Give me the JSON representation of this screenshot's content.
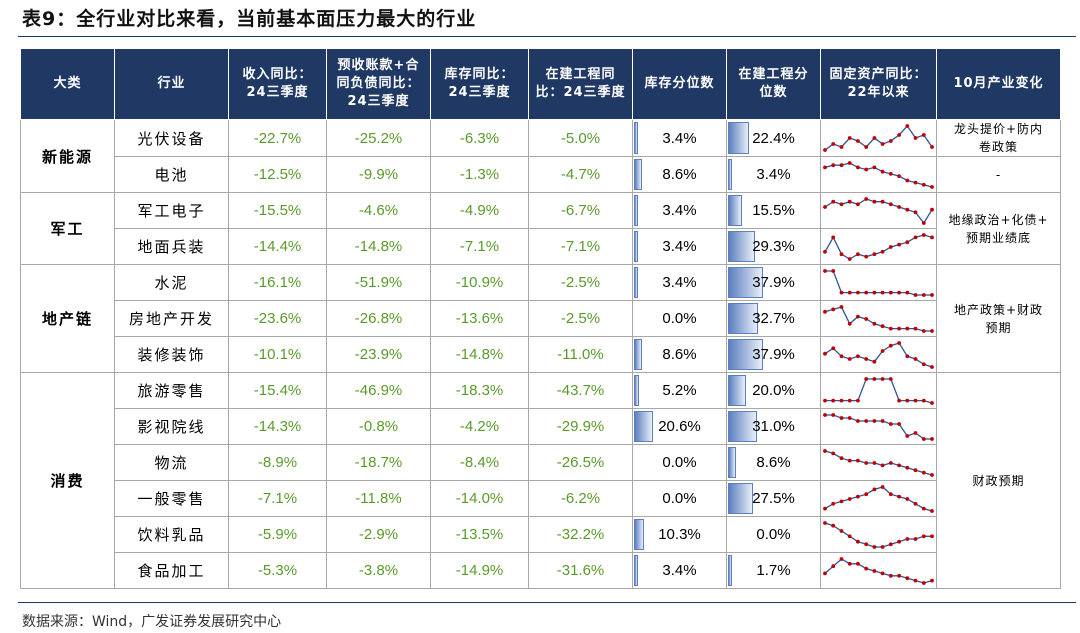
{
  "title": "表9：全行业对比来看，当前基本面压力最大的行业",
  "headers": [
    "大类",
    "行业",
    "收入同比：24三季度",
    "预收账款+合同负债同比：24三季度",
    "库存同比：24三季度",
    "在建工程同比：24三季度",
    "库存分位数",
    "在建工程分位数",
    "固定资产同比：22年以来",
    "10月产业变化"
  ],
  "header_lines": [
    [
      "大类"
    ],
    [
      "行业"
    ],
    [
      "收入同比：",
      "24三季度"
    ],
    [
      "预收账款+合",
      "同负债同比：",
      "24三季度"
    ],
    [
      "库存同比：",
      "24三季度"
    ],
    [
      "在建工程同",
      "比：24三季度"
    ],
    [
      "库存分位数"
    ],
    [
      "在建工程分",
      "位数"
    ],
    [
      "固定资产同比：",
      "22年以来"
    ],
    [
      "10月产业变化"
    ]
  ],
  "groups": [
    {
      "category": "新能源",
      "note": "龙头提价+防内卷政策",
      "note_lines": [
        "龙头提价+防内",
        "卷政策"
      ],
      "note_span": 1,
      "rows": [
        {
          "industry": "光伏设备",
          "rev": "-22.7%",
          "adv": "-25.2%",
          "inv": "-6.3%",
          "cip": "-5.0%",
          "inv_pct": "3.4%",
          "inv_pct_v": 3.4,
          "cip_pct": "22.4%",
          "cip_pct_v": 22.4,
          "spark": [
            4,
            6,
            5,
            8,
            7,
            5,
            8,
            6,
            7,
            9,
            12,
            8,
            9,
            5
          ]
        },
        {
          "industry": "电池",
          "rev": "-12.5%",
          "adv": "-9.9%",
          "inv": "-1.3%",
          "cip": "-4.7%",
          "inv_pct": "8.6%",
          "inv_pct_v": 8.6,
          "cip_pct": "3.4%",
          "cip_pct_v": 3.4,
          "spark": [
            9,
            10,
            10,
            11,
            9,
            8,
            9,
            7,
            6,
            5,
            3,
            2,
            1,
            0
          ]
        }
      ]
    },
    {
      "category": "军工",
      "note": "地缘政治+化债+预期业绩底",
      "note_lines": [
        "地缘政治+化债+",
        "预期业绩底"
      ],
      "note_span": 2,
      "rows": [
        {
          "industry": "军工电子",
          "rev": "-15.5%",
          "adv": "-4.6%",
          "inv": "-4.9%",
          "cip": "-6.7%",
          "inv_pct": "3.4%",
          "inv_pct_v": 3.4,
          "cip_pct": "15.5%",
          "cip_pct_v": 15.5,
          "spark": [
            7,
            9,
            8,
            9,
            8,
            10,
            9,
            9,
            8,
            7,
            6,
            5,
            1,
            6
          ]
        },
        {
          "industry": "地面兵装",
          "rev": "-14.4%",
          "adv": "-14.8%",
          "inv": "-7.1%",
          "cip": "-7.1%",
          "inv_pct": "3.4%",
          "inv_pct_v": 3.4,
          "cip_pct": "29.3%",
          "cip_pct_v": 29.3,
          "spark": [
            3,
            9,
            2,
            0,
            2,
            1,
            2,
            3,
            5,
            6,
            7,
            9,
            10,
            9
          ]
        }
      ]
    },
    {
      "category": "地产链",
      "note": "地产政策+财政预期",
      "note_lines": [
        "地产政策+财政",
        "预期"
      ],
      "note_span": 3,
      "rows": [
        {
          "industry": "水泥",
          "rev": "-16.1%",
          "adv": "-51.9%",
          "inv": "-10.9%",
          "cip": "-2.5%",
          "inv_pct": "3.4%",
          "inv_pct_v": 3.4,
          "cip_pct": "37.9%",
          "cip_pct_v": 37.9,
          "spark": [
            10,
            10,
            1,
            1,
            1,
            1,
            1,
            1,
            1,
            1,
            1,
            0,
            0,
            0
          ]
        },
        {
          "industry": "房地产开发",
          "rev": "-23.6%",
          "adv": "-26.8%",
          "inv": "-13.6%",
          "cip": "-2.5%",
          "inv_pct": "0.0%",
          "inv_pct_v": 0.0,
          "cip_pct": "32.7%",
          "cip_pct_v": 32.7,
          "spark": [
            8,
            9,
            10,
            3,
            6,
            5,
            3,
            2,
            1,
            1,
            1,
            1,
            0,
            0
          ]
        },
        {
          "industry": "装修装饰",
          "rev": "-10.1%",
          "adv": "-23.9%",
          "inv": "-14.8%",
          "cip": "-11.0%",
          "inv_pct": "8.6%",
          "inv_pct_v": 8.6,
          "cip_pct": "37.9%",
          "cip_pct_v": 37.9,
          "spark": [
            5,
            7,
            4,
            3,
            4,
            3,
            2,
            6,
            8,
            9,
            4,
            3,
            1,
            0
          ]
        }
      ]
    },
    {
      "category": "消费",
      "note": "财政预期",
      "note_lines": [
        "财政预期"
      ],
      "note_span": 6,
      "rows": [
        {
          "industry": "旅游零售",
          "rev": "-15.4%",
          "adv": "-46.9%",
          "inv": "-18.3%",
          "cip": "-43.7%",
          "inv_pct": "5.2%",
          "inv_pct_v": 5.2,
          "cip_pct": "20.0%",
          "cip_pct_v": 20.0,
          "spark": [
            1,
            1,
            1,
            1,
            1,
            10,
            10,
            10,
            10,
            1,
            1,
            1,
            1,
            0
          ]
        },
        {
          "industry": "影视院线",
          "rev": "-14.3%",
          "adv": "-0.8%",
          "inv": "-4.2%",
          "cip": "-29.9%",
          "inv_pct": "20.6%",
          "inv_pct_v": 20.6,
          "cip_pct": "31.0%",
          "cip_pct_v": 31.0,
          "spark": [
            10,
            10,
            9,
            9,
            8,
            8,
            8,
            8,
            7,
            7,
            3,
            4,
            2,
            2
          ]
        },
        {
          "industry": "物流",
          "rev": "-8.9%",
          "adv": "-18.7%",
          "inv": "-8.4%",
          "cip": "-26.5%",
          "inv_pct": "0.0%",
          "inv_pct_v": 0.0,
          "cip_pct": "8.6%",
          "cip_pct_v": 8.6,
          "spark": [
            10,
            9,
            7,
            6,
            6,
            5,
            5,
            4,
            5,
            4,
            3,
            2,
            1,
            0
          ]
        },
        {
          "industry": "一般零售",
          "rev": "-7.1%",
          "adv": "-11.8%",
          "inv": "-14.0%",
          "cip": "-6.2%",
          "inv_pct": "0.0%",
          "inv_pct_v": 0.0,
          "cip_pct": "27.5%",
          "cip_pct_v": 27.5,
          "spark": [
            1,
            3,
            4,
            5,
            6,
            7,
            9,
            10,
            7,
            6,
            5,
            3,
            1,
            0
          ]
        },
        {
          "industry": "饮料乳品",
          "rev": "-5.9%",
          "adv": "-2.9%",
          "inv": "-13.5%",
          "cip": "-32.2%",
          "inv_pct": "10.3%",
          "inv_pct_v": 10.3,
          "cip_pct": "0.0%",
          "cip_pct_v": 0.0,
          "spark": [
            10,
            9,
            7,
            5,
            3,
            2,
            1,
            1,
            2,
            3,
            4,
            4,
            5,
            5
          ]
        },
        {
          "industry": "食品加工",
          "rev": "-5.3%",
          "adv": "-3.8%",
          "inv": "-14.9%",
          "cip": "-31.6%",
          "inv_pct": "3.4%",
          "inv_pct_v": 3.4,
          "cip_pct": "1.7%",
          "cip_pct_v": 1.7,
          "spark": [
            4,
            7,
            10,
            8,
            8,
            6,
            5,
            4,
            3,
            3,
            2,
            1,
            0,
            1
          ]
        }
      ]
    }
  ],
  "source": "数据来源：Wind，广发证券发展研究中心",
  "colors": {
    "header_bg": "#1f3864",
    "value_green": "#5a9a2b",
    "bar_blue": "#5b7fbf",
    "spark_line": "#2f5597",
    "spark_dot": "#c00000"
  }
}
